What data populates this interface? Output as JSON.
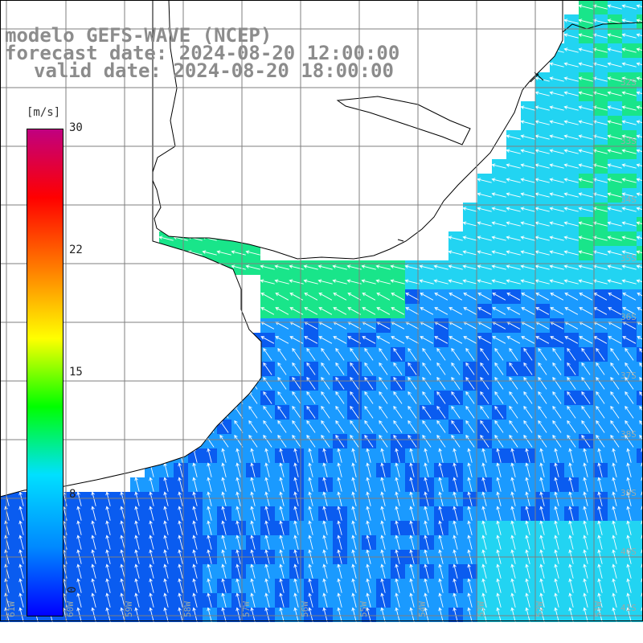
{
  "title": {
    "line1": "modelo GEFS-WAVE (NCEP)",
    "line2": "forecast date: 2024-08-20 12:00:00",
    "line3": "valid date: 2024-08-20 18:00:00"
  },
  "colorbar": {
    "unit": "[m/s]",
    "ticks": [
      "30",
      "22",
      "15",
      "8",
      "0"
    ],
    "tick_values": [
      30,
      22,
      15,
      8,
      0
    ],
    "range": [
      0,
      30
    ],
    "colors": [
      "#0000ff",
      "#0088ff",
      "#00e0ff",
      "#00ff00",
      "#ffff00",
      "#ff8000",
      "#ff0000",
      "#c00080"
    ]
  },
  "map": {
    "latitude_labels": [
      "32S",
      "33S",
      "34S",
      "35S",
      "36S",
      "37S",
      "38S",
      "39S",
      "40S",
      "41S"
    ],
    "longitude_labels": [
      "61W",
      "60W",
      "59W",
      "58W",
      "57W",
      "56W",
      "55W",
      "54W",
      "53W",
      "52W",
      "51W"
    ],
    "land_color": "#ffffff",
    "grid_color": "#7f7f7f",
    "coast_color": "#000000",
    "arrow_color": "#ffffff",
    "field_colors": {
      "low": "#0a5cf0",
      "mid": "#1a9aff",
      "high": "#22d4f2",
      "peak": "#19e58a"
    }
  }
}
